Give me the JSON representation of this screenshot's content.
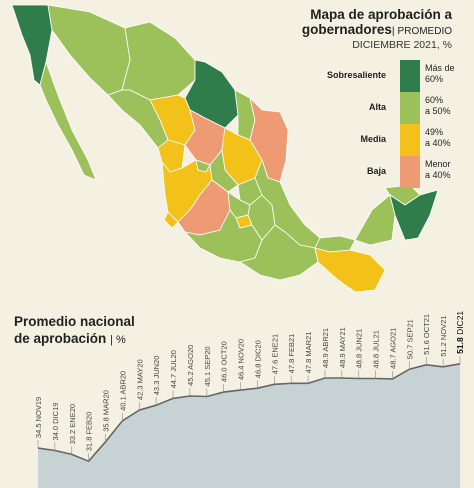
{
  "map": {
    "title_line1": "Mapa de aprobación a",
    "title_line2": "gobernadores",
    "subtitle_line1": "PROMEDIO",
    "subtitle_line2": "DICIEMBRE 2021, %",
    "colors": {
      "sobresaliente": "#2f7d4a",
      "alta": "#9dc15a",
      "media": "#f2c21a",
      "baja": "#ee9a73",
      "border": "#ffffff"
    },
    "legend": [
      {
        "name": "Sobresaliente",
        "range_line1": "Más de",
        "range_line2": "60%",
        "color": "#2f7d4a"
      },
      {
        "name": "Alta",
        "range_line1": "60%",
        "range_line2": "a 50%",
        "color": "#9dc15a"
      },
      {
        "name": "Media",
        "range_line1": "49%",
        "range_line2": "a 40%",
        "color": "#f2c21a"
      },
      {
        "name": "Baja",
        "range_line1": "Menor",
        "range_line2": "a 40%",
        "color": "#ee9a73"
      }
    ]
  },
  "national": {
    "title_line1": "Promedio nacional",
    "title_line2": "de aprobación",
    "unit": "%"
  },
  "chart_data": {
    "type": "area",
    "title": "Promedio nacional de aprobación",
    "ylabel": "%",
    "categories": [
      "NOV19",
      "DIC19",
      "ENE20",
      "FEB20",
      "MAR20",
      "ABR20",
      "MAY20",
      "JUN20",
      "JUL20",
      "AGO20",
      "SEP20",
      "OCT20",
      "NOV20",
      "DIC20",
      "ENE21",
      "FEB21",
      "MAR21",
      "ABR21",
      "MAY21",
      "JUN21",
      "JUL21",
      "AGO21",
      "SEP21",
      "OCT21",
      "NOV21",
      "DIC21"
    ],
    "values": [
      34.5,
      34.0,
      33.2,
      31.8,
      35.8,
      40.1,
      42.3,
      43.3,
      44.7,
      45.2,
      45.1,
      46.0,
      46.4,
      46.8,
      47.6,
      47.8,
      47.8,
      48.9,
      48.9,
      48.8,
      48.8,
      48.7,
      50.7,
      51.6,
      51.2,
      51.8
    ],
    "ylim": [
      30,
      53
    ],
    "colors": {
      "area": "#c7d2d4",
      "line": "#666666",
      "drop": "#8a8a8a",
      "label": "#444444",
      "last_label": "#111111"
    }
  }
}
